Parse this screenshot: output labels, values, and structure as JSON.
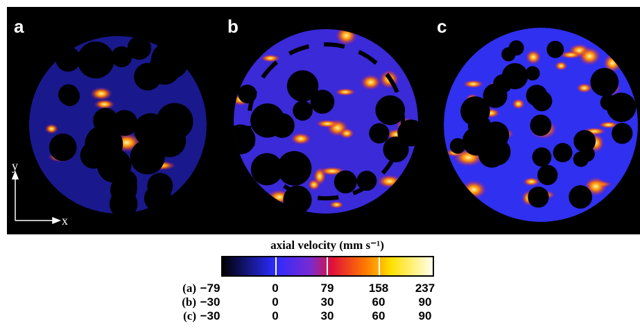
{
  "panels": [
    {
      "label": "a"
    },
    {
      "label": "b"
    },
    {
      "label": "c"
    }
  ],
  "axes": {
    "y": "y",
    "x": "x"
  },
  "colorbar": {
    "title": "axial velocity (mm s⁻¹)"
  },
  "table": {
    "rows": [
      {
        "label": "(a)",
        "values": [
          "−79",
          "0",
          "79",
          "158",
          "237"
        ]
      },
      {
        "label": "(b)",
        "values": [
          "−30",
          "0",
          "30",
          "60",
          "90"
        ]
      },
      {
        "label": "(c)",
        "values": [
          "−30",
          "0",
          "30",
          "60",
          "90"
        ]
      }
    ]
  }
}
